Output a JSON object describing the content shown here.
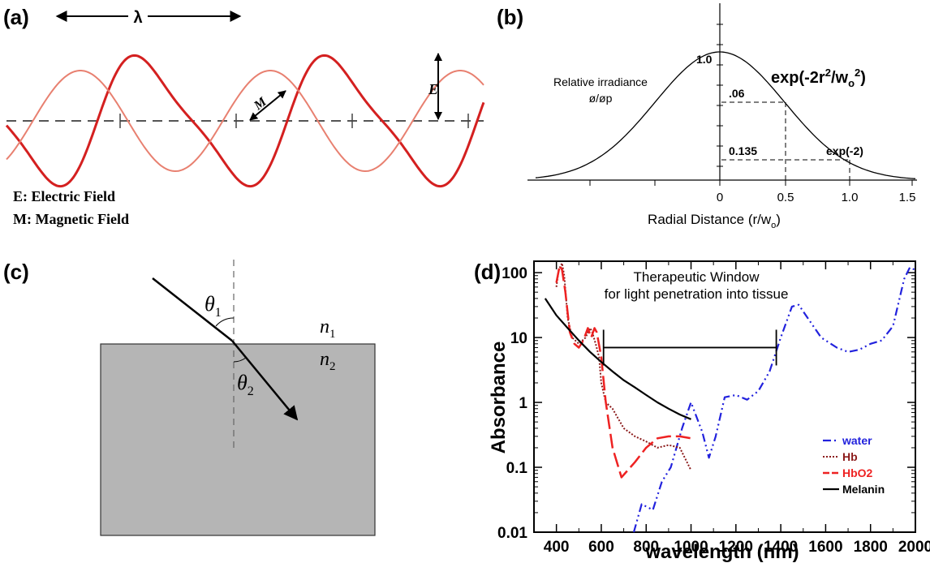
{
  "panels": {
    "a": {
      "label": "(a)",
      "lambda_symbol": "λ",
      "e_symbol": "E",
      "m_symbol": "M",
      "legend_e": "E: Electric Field",
      "legend_m": "M: Magnetic Field",
      "colors": {
        "electric": "#d42020",
        "magnetic": "#e88070"
      }
    },
    "b": {
      "label": "(b)",
      "ylabel_line1": "Relative irradiance",
      "ylabel_line2": "ø/øp",
      "formula_base": "exp(-2r",
      "formula_exp1": "2",
      "formula_mid": "/w",
      "formula_sub": "o",
      "formula_exp2": "2",
      "formula_end": ")",
      "peak_label": "1.0",
      "level1_label": ".06",
      "level2_label": "0.135",
      "annotation": "exp(-2)",
      "xlabel_base": "Radial Distance (r/w",
      "xlabel_sub": "o",
      "xlabel_end": ")",
      "xticks": [
        "0",
        "0.5",
        "1.0",
        "1.5"
      ]
    },
    "c": {
      "label": "(c)",
      "theta1_base": "θ",
      "theta1_sub": "1",
      "theta2_base": "θ",
      "theta2_sub": "2",
      "n1_base": "n",
      "n1_sub": "1",
      "n2_base": "n",
      "n2_sub": "2",
      "colors": {
        "medium": "#b5b5b5"
      }
    },
    "d": {
      "label": "(d)",
      "window_line1": "Therapeutic Window",
      "window_line2": "for light penetration into tissue",
      "ylabel": "Absorbance",
      "xlabel": "wavelength (nm)",
      "yticks": [
        "0.01",
        "0.1",
        "1",
        "10",
        "100"
      ],
      "xticks": [
        "400",
        "600",
        "800",
        "1000",
        "1200",
        "1400",
        "1600",
        "1800",
        "2000"
      ]
    }
  },
  "chart_data": {
    "type": "line",
    "xlabel": "wavelength (nm)",
    "ylabel": "Absorbance",
    "xlim": [
      300,
      2000
    ],
    "ylim": [
      0.01,
      150
    ],
    "y_scale": "log",
    "legend_position": "right",
    "annotation": {
      "text": "Therapeutic Window for light penetration into tissue",
      "x_range": [
        610,
        1380
      ],
      "y": 7
    },
    "series": [
      {
        "name": "water",
        "color": "#2222dd",
        "x": [
          745,
          780,
          830,
          870,
          910,
          960,
          1000,
          1050,
          1080,
          1110,
          1150,
          1200,
          1250,
          1300,
          1350,
          1400,
          1450,
          1480,
          1520,
          1580,
          1650,
          1700,
          1750,
          1800,
          1850,
          1900,
          1950,
          1975,
          2000
        ],
        "y": [
          0.01,
          0.027,
          0.022,
          0.06,
          0.1,
          0.4,
          1.0,
          0.35,
          0.14,
          0.3,
          1.2,
          1.3,
          1.1,
          1.5,
          3,
          10,
          30,
          32,
          20,
          10,
          7,
          6,
          6.5,
          8,
          9,
          15,
          80,
          120,
          110
        ]
      },
      {
        "name": "Hb",
        "color": "#8b1a1a",
        "x": [
          400,
          410,
          425,
          435,
          450,
          470,
          500,
          530,
          550,
          560,
          575,
          590,
          600,
          620,
          650,
          700,
          750,
          800,
          850,
          900,
          950,
          1000
        ],
        "y": [
          60,
          110,
          140,
          90,
          20,
          10,
          8,
          10,
          14,
          12,
          8,
          5,
          2,
          1,
          0.8,
          0.4,
          0.3,
          0.25,
          0.2,
          0.22,
          0.2,
          0.09
        ]
      },
      {
        "name": "HbO2",
        "color": "#ee2222",
        "x": [
          400,
          415,
          425,
          440,
          460,
          480,
          500,
          520,
          540,
          555,
          570,
          580,
          600,
          620,
          650,
          690,
          750,
          800,
          850,
          900,
          950,
          1000
        ],
        "y": [
          70,
          130,
          110,
          50,
          12,
          8,
          7,
          9,
          14,
          10,
          14,
          12,
          5,
          1,
          0.2,
          0.07,
          0.12,
          0.2,
          0.28,
          0.3,
          0.3,
          0.28
        ]
      },
      {
        "name": "Melanin",
        "color": "#000000",
        "x": [
          350,
          400,
          450,
          500,
          550,
          600,
          650,
          700,
          750,
          800,
          850,
          900,
          950,
          1000
        ],
        "y": [
          40,
          22,
          14,
          9,
          6,
          4.2,
          3,
          2.2,
          1.7,
          1.3,
          1.0,
          0.8,
          0.65,
          0.55
        ]
      }
    ]
  }
}
